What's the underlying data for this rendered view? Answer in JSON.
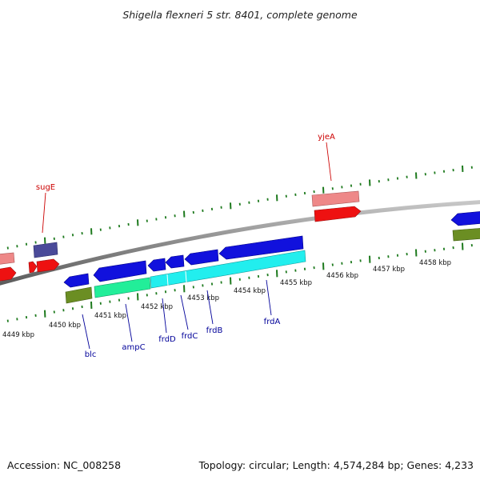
{
  "title": "Shigella flexneri 5 str. 8401, complete genome",
  "footer": {
    "accession": "Accession: NC_008258",
    "topology": "Topology: circular; Length: 4,574,284 bp; Genes: 4,233"
  },
  "colors": {
    "backbone": "#8a8a8a",
    "tick": "#1e7a1e",
    "label_top": "#cc0000",
    "label_bottom": "#000099",
    "feature_red": "#ee1111",
    "feature_pink": "#ee8888",
    "feature_blue": "#1111dd",
    "feature_cyan": "#22eeee",
    "feature_teal": "#22ee99",
    "feature_purple": "#4a4a99",
    "feature_olive": "#6b8e23"
  },
  "scale": {
    "kbp_labels": [
      "4449 kbp",
      "4450 kbp",
      "4451 kbp",
      "4452 kbp",
      "4453 kbp",
      "4454 kbp",
      "4455 kbp",
      "4456 kbp",
      "4457 kbp",
      "4458 kbp"
    ]
  },
  "gene_labels": {
    "top": [
      "sugE",
      "yjeA"
    ],
    "bottom": [
      "blc",
      "ampC",
      "frdD",
      "frdC",
      "frdB",
      "frdA"
    ]
  }
}
